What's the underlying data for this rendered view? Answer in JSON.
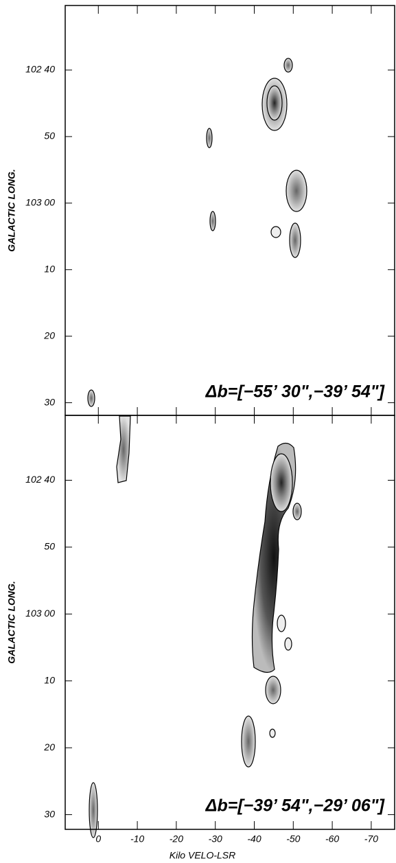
{
  "chart_data": [
    {
      "type": "contour",
      "ylabel": "GALACTIC LONG.",
      "annotation": "Δb=[−55’ 30\",−39’ 54\"]",
      "xlim": [
        8.5,
        -76
      ],
      "ylim": [
        30.3,
        91.9
      ],
      "xticks": [
        0,
        -10,
        -20,
        -30,
        -40,
        -50,
        -60,
        -70
      ],
      "yticks": [
        {
          "value": 40,
          "label": "102 40"
        },
        50,
        {
          "value": 60,
          "label": "103 00"
        },
        {
          "value": 70,
          "label": "10"
        },
        {
          "value": 80,
          "label": "20"
        },
        {
          "value": 90,
          "label": "30"
        }
      ]
    },
    {
      "type": "contour",
      "ylabel": "GALACTIC LONG.",
      "xlabel": "Kilo VELO-LSR",
      "annotation": "Δb=[−39’ 54\",−29’ 06\"]",
      "xlim": [
        8.5,
        -76
      ],
      "ylim": [
        30.3,
        92.2
      ],
      "xticks": [
        0,
        -10,
        -20,
        -30,
        -40,
        -50,
        -60,
        -70
      ],
      "yticks": [
        {
          "value": 40,
          "label": "102 40"
        },
        50,
        {
          "value": 60,
          "label": "103 00"
        },
        {
          "value": 70,
          "label": "10"
        },
        {
          "value": 80,
          "label": "20"
        },
        {
          "value": 90,
          "label": "30"
        }
      ]
    }
  ]
}
